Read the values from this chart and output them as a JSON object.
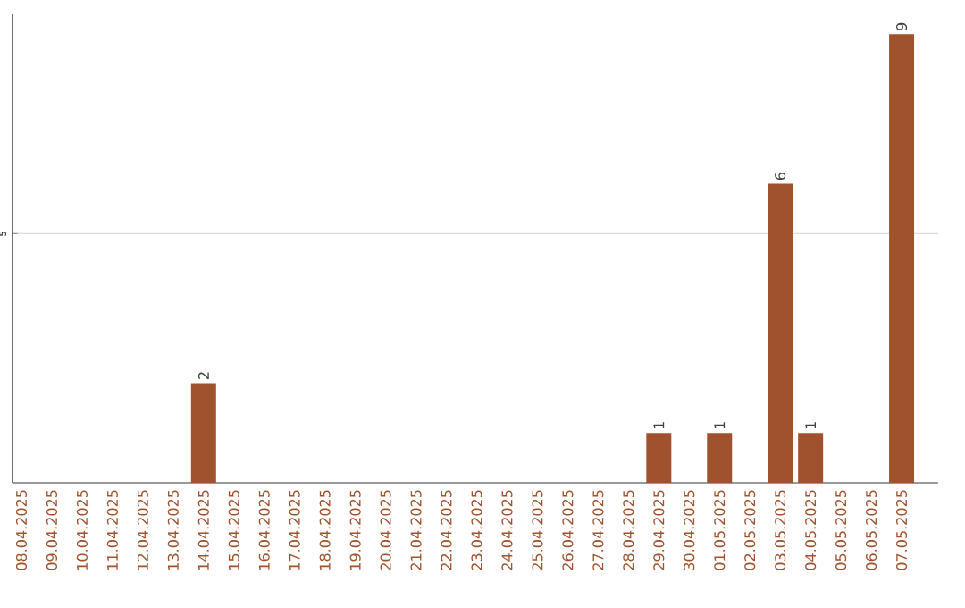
{
  "chart_data": {
    "type": "bar",
    "categories": [
      "08.04.2025",
      "09.04.2025",
      "10.04.2025",
      "11.04.2025",
      "12.04.2025",
      "13.04.2025",
      "14.04.2025",
      "15.04.2025",
      "16.04.2025",
      "17.04.2025",
      "18.04.2025",
      "19.04.2025",
      "20.04.2025",
      "21.04.2025",
      "22.04.2025",
      "23.04.2025",
      "24.04.2025",
      "25.04.2025",
      "26.04.2025",
      "27.04.2025",
      "28.04.2025",
      "29.04.2025",
      "30.04.2025",
      "01.05.2025",
      "02.05.2025",
      "03.05.2025",
      "04.05.2025",
      "05.05.2025",
      "06.05.2025",
      "07.05.2025"
    ],
    "values": [
      0,
      0,
      0,
      0,
      0,
      0,
      2,
      0,
      0,
      0,
      0,
      0,
      0,
      0,
      0,
      0,
      0,
      0,
      0,
      0,
      0,
      1,
      0,
      1,
      0,
      6,
      1,
      0,
      0,
      9
    ],
    "value_labels": [
      null,
      null,
      null,
      null,
      null,
      null,
      "2",
      null,
      null,
      null,
      null,
      null,
      null,
      null,
      null,
      null,
      null,
      null,
      null,
      null,
      null,
      "1",
      null,
      "1",
      null,
      "6",
      "1",
      null,
      null,
      "9"
    ],
    "color": "#a0522d",
    "ylim": [
      0,
      9.4
    ],
    "yticks": [
      5
    ],
    "grid": "y"
  }
}
